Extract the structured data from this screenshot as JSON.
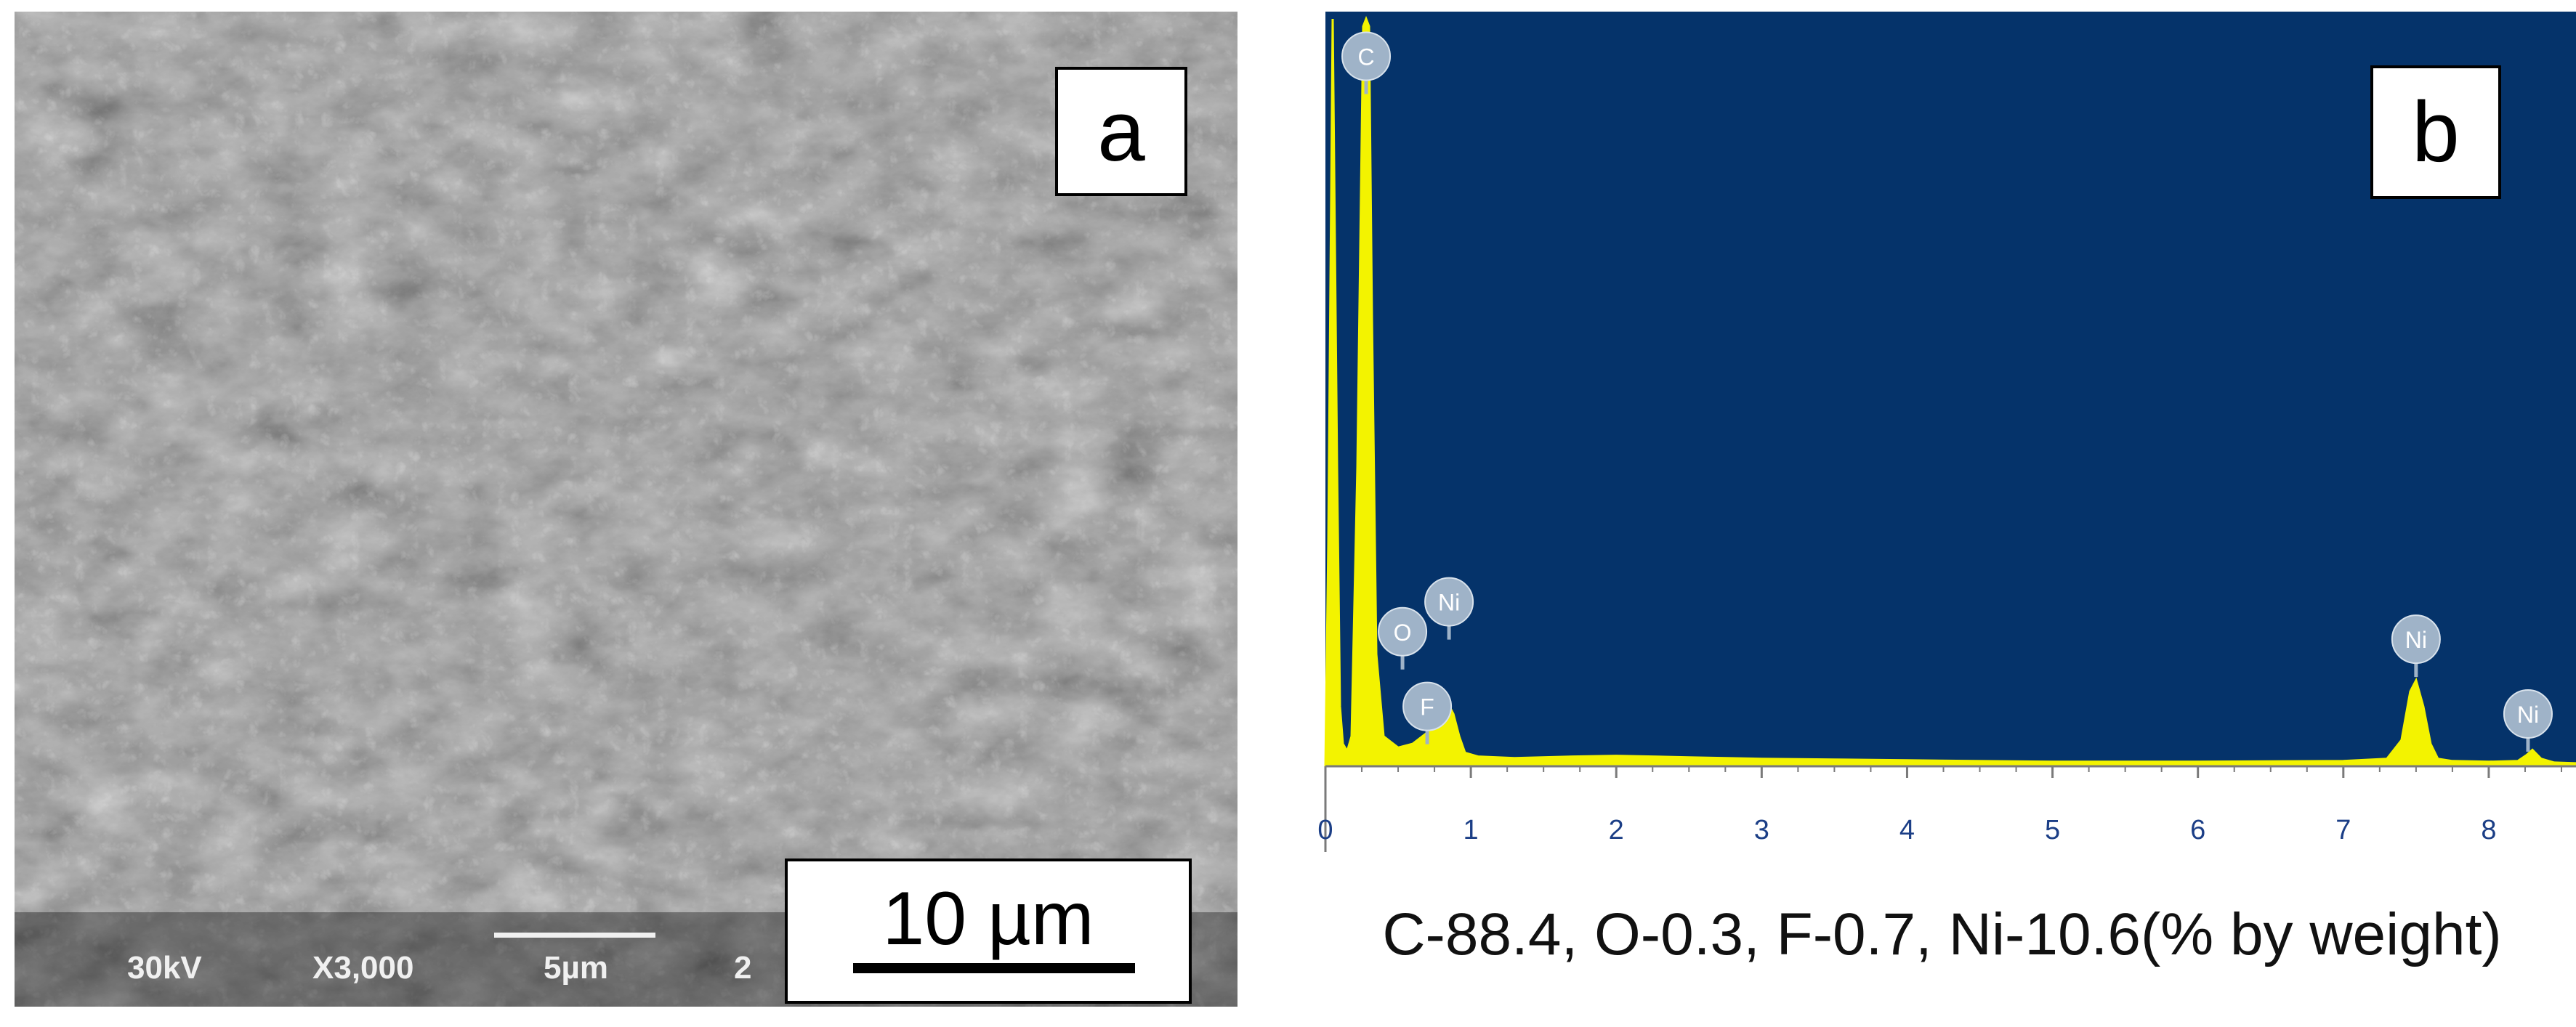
{
  "panel_a": {
    "label": "a",
    "sem_info": {
      "voltage": "30kV",
      "magnification": "X3,000",
      "scale": "5µm",
      "truncated": "2"
    },
    "scale_bar_label": "10 µm"
  },
  "panel_b": {
    "label": "b",
    "composition_text": "C-88.4, O-0.3, F-0.7, Ni-10.6(% by weight)"
  },
  "chart_data": {
    "type": "line",
    "title": "",
    "xlabel": "",
    "ylabel": "",
    "xlim": [
      0,
      8.6
    ],
    "ylim": [
      0,
      100
    ],
    "xticks": [
      "0",
      "1",
      "2",
      "3",
      "4",
      "5",
      "6",
      "7",
      "8"
    ],
    "grid": false,
    "colors": {
      "background": "#05336a",
      "fill": "#f3f300",
      "marker": "#9fb3c8"
    },
    "series": [
      {
        "x": [
          0,
          0.02,
          0.05,
          0.08,
          0.1,
          0.12,
          0.15,
          0.18,
          0.22,
          0.26,
          0.28,
          0.3,
          0.32,
          0.35,
          0.4,
          0.5,
          0.6,
          0.7,
          0.78,
          0.84,
          0.88,
          0.92,
          0.96,
          1.05,
          1.3,
          1.7,
          2.0,
          2.5,
          3.0,
          3.5,
          4.0,
          5.0,
          6.0,
          7.0,
          7.3,
          7.4,
          7.46,
          7.5,
          7.55,
          7.6,
          7.65,
          7.75,
          8.0,
          8.2,
          8.26,
          8.3,
          8.36,
          8.45,
          8.6
        ],
        "values": [
          0,
          30,
          100,
          40,
          8,
          3,
          2,
          4,
          40,
          99,
          100,
          99,
          60,
          15,
          4,
          2.5,
          3,
          4.5,
          7,
          8.5,
          7,
          4,
          1.8,
          1.3,
          1.1,
          1.3,
          1.4,
          1.2,
          1.0,
          0.9,
          0.8,
          0.6,
          0.6,
          0.7,
          1.0,
          3.5,
          10,
          11.5,
          8,
          3,
          1.0,
          0.7,
          0.6,
          0.7,
          1.5,
          2.2,
          1.0,
          0.5,
          0.4
        ]
      }
    ],
    "peak_labels": [
      {
        "element": "C",
        "x": 0.28,
        "y": 95
      },
      {
        "element": "O",
        "x": 0.53,
        "y": 18
      },
      {
        "element": "Ni",
        "x": 0.85,
        "y": 22
      },
      {
        "element": "F",
        "x": 0.7,
        "y": 8
      },
      {
        "element": "Ni",
        "x": 7.5,
        "y": 17
      },
      {
        "element": "Ni",
        "x": 8.27,
        "y": 7
      }
    ]
  }
}
